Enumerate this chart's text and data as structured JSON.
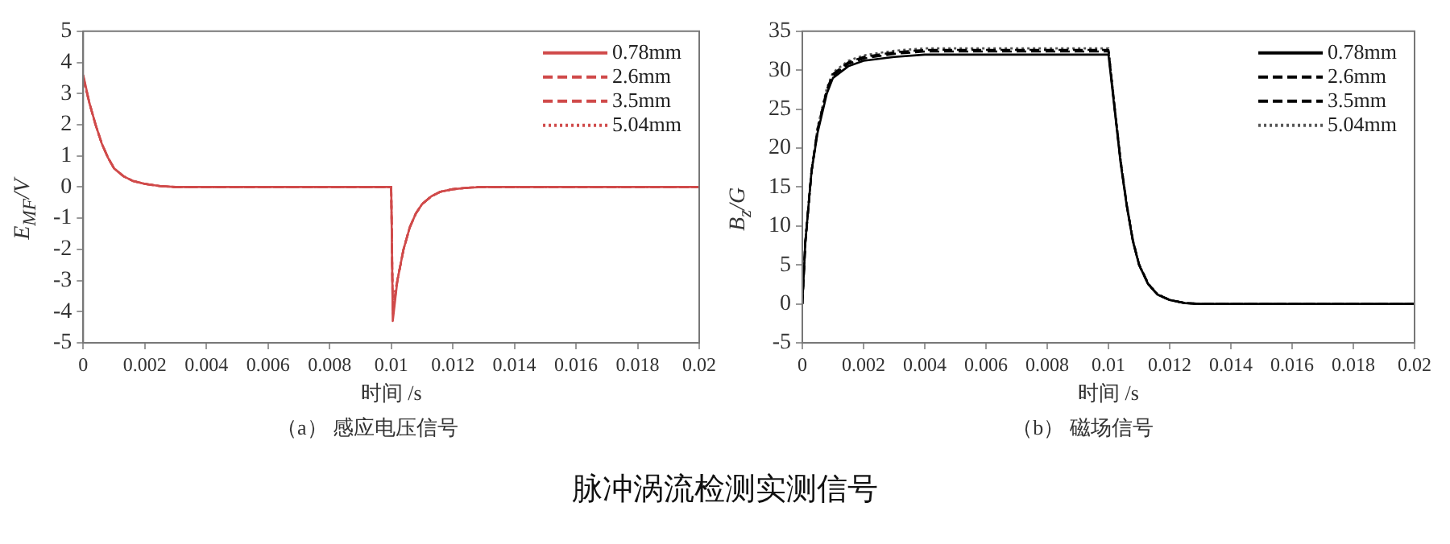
{
  "chart_data": [
    {
      "type": "line",
      "title": "（a） 感应电压信号",
      "xlabel": "时间 /s",
      "ylabel": "E$_{MF}$/V",
      "legend": "top right",
      "grid": false,
      "marker": "none",
      "xlim": [
        0,
        0.02
      ],
      "xticks": [
        0,
        0.002,
        0.004,
        0.006,
        0.008,
        0.01,
        0.012,
        0.014,
        0.016,
        0.018,
        0.02
      ],
      "ylim": [
        -5,
        5
      ],
      "yticks": [
        -5,
        -4,
        -3,
        -2,
        -1,
        0,
        1,
        2,
        3,
        4,
        5
      ],
      "x": [
        0,
        0.0002,
        0.0004,
        0.0006,
        0.0008,
        0.001,
        0.0013,
        0.0016,
        0.002,
        0.0025,
        0.003,
        0.01,
        0.01005,
        0.0102,
        0.0104,
        0.0106,
        0.0108,
        0.011,
        0.0113,
        0.0116,
        0.012,
        0.0125,
        0.013,
        0.02
      ],
      "series": [
        {
          "name": "0.78mm",
          "color": "#d04a4a",
          "line_style": "solid",
          "values": [
            3.6,
            2.7,
            2.0,
            1.4,
            0.95,
            0.6,
            0.35,
            0.2,
            0.1,
            0.03,
            0,
            0,
            -4.3,
            -3.0,
            -2.0,
            -1.3,
            -0.85,
            -0.55,
            -0.3,
            -0.15,
            -0.07,
            -0.02,
            0,
            0
          ]
        },
        {
          "name": "2.6mm",
          "color": "#d04a4a",
          "line_style": "dashed",
          "values": [
            3.55,
            2.7,
            2.0,
            1.4,
            0.95,
            0.6,
            0.35,
            0.2,
            0.1,
            0.03,
            0,
            0,
            -4.1,
            -3.0,
            -2.0,
            -1.3,
            -0.85,
            -0.55,
            -0.3,
            -0.15,
            -0.07,
            -0.02,
            0,
            0
          ]
        },
        {
          "name": "3.5mm",
          "color": "#d04a4a",
          "line_style": "dashed",
          "values": [
            3.5,
            2.7,
            2.0,
            1.4,
            0.95,
            0.6,
            0.35,
            0.2,
            0.1,
            0.03,
            0,
            0,
            -3.9,
            -3.0,
            -2.0,
            -1.3,
            -0.85,
            -0.55,
            -0.3,
            -0.15,
            -0.07,
            -0.02,
            0,
            0
          ]
        },
        {
          "name": "5.04mm",
          "color": "#d04a4a",
          "line_style": "dotted",
          "values": [
            3.45,
            2.7,
            2.0,
            1.4,
            0.95,
            0.6,
            0.35,
            0.2,
            0.1,
            0.03,
            0,
            0,
            -3.7,
            -3.0,
            -2.0,
            -1.3,
            -0.85,
            -0.55,
            -0.3,
            -0.15,
            -0.07,
            -0.02,
            0,
            0
          ]
        }
      ],
      "annotations": [
        "脉冲涡流检测实测信号"
      ]
    },
    {
      "type": "line",
      "title": "（b） 磁场信号",
      "xlabel": "时间 /s",
      "ylabel": "B$_{z}$/G",
      "legend": "top right",
      "grid": false,
      "marker": "none",
      "xlim": [
        0,
        0.02
      ],
      "xticks": [
        0,
        0.002,
        0.004,
        0.006,
        0.008,
        0.01,
        0.012,
        0.014,
        0.016,
        0.018,
        0.02
      ],
      "ylim": [
        -5,
        35
      ],
      "yticks": [
        -5,
        0,
        5,
        10,
        15,
        20,
        25,
        30,
        35
      ],
      "x": [
        0,
        0.0001,
        0.0003,
        0.0005,
        0.0008,
        0.001,
        0.0015,
        0.002,
        0.003,
        0.004,
        0.01,
        0.0102,
        0.0104,
        0.0106,
        0.0108,
        0.011,
        0.0113,
        0.0116,
        0.012,
        0.0125,
        0.013,
        0.02
      ],
      "series": [
        {
          "name": "0.78mm",
          "color": "#000000",
          "line_style": "solid",
          "values": [
            0,
            8,
            17,
            22,
            27,
            29,
            30.5,
            31.2,
            31.7,
            32,
            32,
            25,
            18,
            12.5,
            8,
            5,
            2.5,
            1.2,
            0.5,
            0.1,
            0,
            0
          ]
        },
        {
          "name": "2.6mm",
          "color": "#000000",
          "line_style": "dashed",
          "values": [
            0,
            8,
            17,
            22.3,
            27.3,
            29.3,
            30.8,
            31.5,
            32.1,
            32.4,
            32.4,
            25.2,
            18.2,
            12.6,
            8.1,
            5,
            2.5,
            1.2,
            0.5,
            0.1,
            0,
            0
          ]
        },
        {
          "name": "3.5mm",
          "color": "#000000",
          "line_style": "dashed",
          "values": [
            0,
            8,
            17,
            22.5,
            27.5,
            29.5,
            31,
            31.7,
            32.3,
            32.6,
            32.6,
            25.3,
            18.3,
            12.7,
            8.1,
            5.1,
            2.6,
            1.2,
            0.5,
            0.1,
            0,
            0
          ]
        },
        {
          "name": "5.04mm",
          "color": "#555555",
          "line_style": "dotted",
          "values": [
            0,
            8,
            17,
            22.7,
            27.7,
            29.7,
            31.2,
            31.9,
            32.5,
            32.8,
            32.8,
            25.5,
            18.4,
            12.8,
            8.2,
            5.1,
            2.6,
            1.3,
            0.5,
            0.1,
            0,
            0
          ]
        }
      ]
    }
  ]
}
